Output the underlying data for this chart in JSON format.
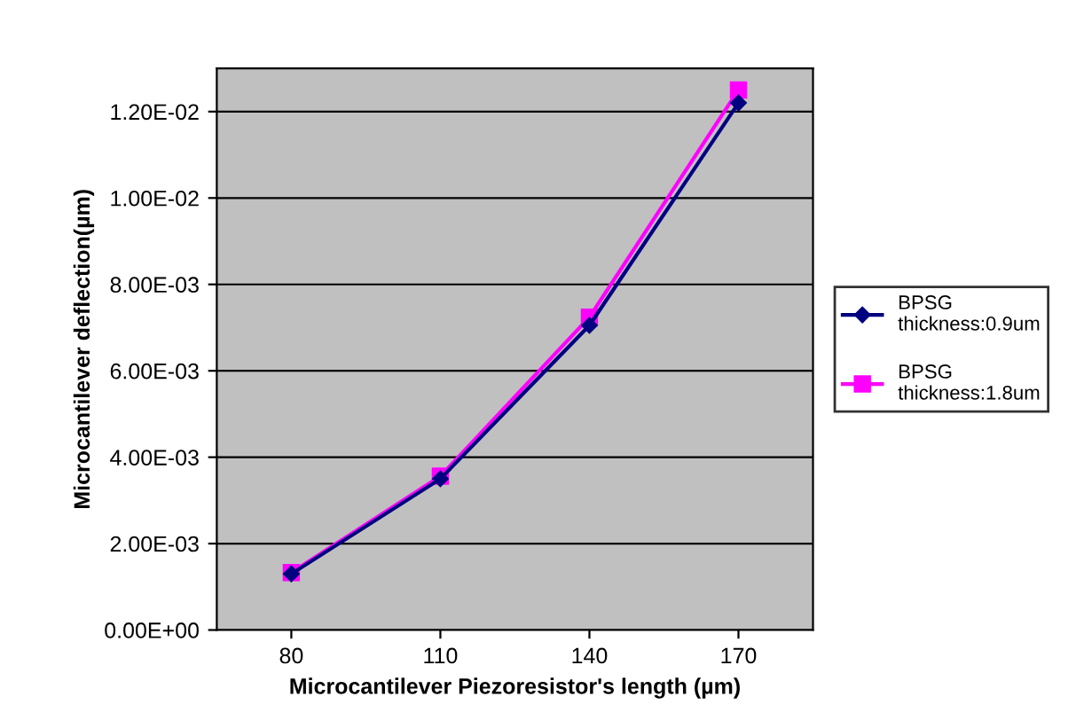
{
  "chart_data": {
    "type": "line",
    "xlabel": "Microcantilever Piezoresistor's length (µm)",
    "ylabel": "Microcantilever deflection(µm)",
    "categories": [
      "80",
      "110",
      "140",
      "170"
    ],
    "series": [
      {
        "name": "BPSG\nthickness:0.9um",
        "color": "#000080",
        "values": [
          0.0013,
          0.0035,
          0.00705,
          0.0122
        ],
        "marker": "diamond"
      },
      {
        "name": "BPSG\nthickness:1.8um",
        "color": "#ff00ff",
        "values": [
          0.00133,
          0.00356,
          0.00724,
          0.0125
        ],
        "marker": "square"
      }
    ],
    "ylim": [
      0,
      0.013
    ],
    "yticks": [
      {
        "value": 0,
        "label": "0.00E+00"
      },
      {
        "value": 0.002,
        "label": "2.00E-03"
      },
      {
        "value": 0.004,
        "label": "4.00E-03"
      },
      {
        "value": 0.006,
        "label": "6.00E-03"
      },
      {
        "value": 0.008,
        "label": "8.00E-03"
      },
      {
        "value": 0.01,
        "label": "1.00E-02"
      },
      {
        "value": 0.012,
        "label": "1.20E-02"
      }
    ],
    "grid": "y",
    "legend": "right"
  }
}
